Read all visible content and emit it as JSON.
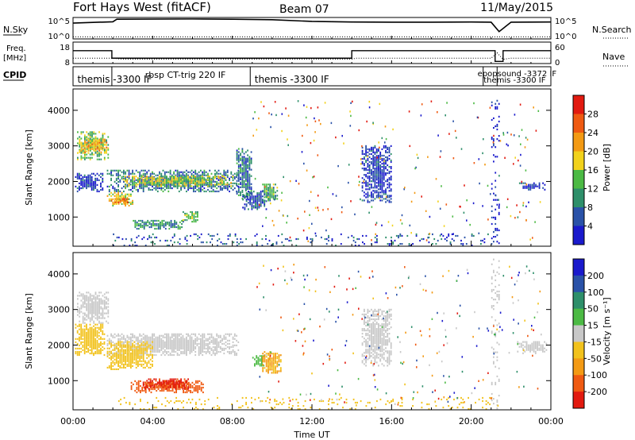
{
  "header": {
    "title": "Fort Hays West (fitACF)",
    "beam": "Beam 07",
    "date": "11/May/2015"
  },
  "xaxis": {
    "label": "Time UT",
    "ticks": [
      "00:00",
      "04:00",
      "08:00",
      "12:00",
      "16:00",
      "20:00",
      "00:00"
    ]
  },
  "nsky_panel": {
    "left_label": "N.Sky",
    "left_ticks": [
      "10^5",
      "10^0"
    ],
    "right_label": "N.Search",
    "right_ticks": [
      "10^5",
      "10^0"
    ]
  },
  "freq_panel": {
    "left_label_1": "Freq.",
    "left_label_2": "[MHz]",
    "left_ticks": [
      "18",
      "8"
    ],
    "right_label": "Nave",
    "right_ticks": [
      "60",
      "0"
    ]
  },
  "cpid": {
    "label": "CPID",
    "entries": [
      {
        "text": "themis -3300 IF",
        "t": 0.1
      },
      {
        "text": "rbsp CT-trig 220 IF",
        "t": 3.5
      },
      {
        "text": "themis -3300 IF",
        "t": 9.0
      },
      {
        "text": "epopsound -3372 IF",
        "t": 20.2
      },
      {
        "text": "themis -3300 IF",
        "t": 20.5
      }
    ]
  },
  "power_panel": {
    "ylabel": "Slant Range [km]",
    "yticks": [
      "1000",
      "2000",
      "3000",
      "4000"
    ],
    "colorbar_label": "Power [dB]",
    "colorbar_ticks": [
      "4",
      "8",
      "12",
      "16",
      "20",
      "24",
      "28"
    ],
    "colors": [
      "#1a1acc",
      "#2a52a8",
      "#2e8f6a",
      "#4cba44",
      "#f2d21c",
      "#f39a14",
      "#ef5a12",
      "#e21a10"
    ]
  },
  "velocity_panel": {
    "ylabel": "Slant Range [km]",
    "yticks": [
      "1000",
      "2000",
      "3000",
      "4000"
    ],
    "colorbar_label": "Velocity [m s⁻¹]",
    "colorbar_ticks": [
      "200",
      "100",
      "50",
      "15",
      "-15",
      "-50",
      "-100",
      "-200"
    ],
    "colors": [
      "#1a1acc",
      "#2a52a8",
      "#2e8f6a",
      "#4cba44",
      "#c8c8c8",
      "#f2c21c",
      "#f39a14",
      "#ef5a12",
      "#e21a10"
    ]
  },
  "chart_data": [
    {
      "type": "line",
      "panel": "nsky",
      "series": [
        {
          "name": "N.Sky",
          "x": [
            0,
            2,
            2.2,
            6,
            8,
            10,
            12,
            14,
            16,
            18,
            20,
            21,
            21.4,
            22,
            24
          ],
          "y": [
            5000,
            10000,
            40000,
            45000,
            40000,
            30000,
            12000,
            9000,
            8000,
            8000,
            9000,
            8000,
            50,
            8000,
            9000
          ]
        },
        {
          "name": "N.Search",
          "x": [
            0,
            24
          ],
          "y": [
            3,
            3
          ]
        }
      ]
    },
    {
      "type": "line",
      "panel": "frequency",
      "series": [
        {
          "name": "Freq",
          "x": [
            0,
            1.95,
            1.95,
            14.0,
            14.0,
            21.2,
            21.2,
            21.6,
            21.6,
            24
          ],
          "y": [
            14,
            14,
            10.5,
            10.5,
            14,
            14,
            9,
            9,
            14,
            14
          ]
        },
        {
          "name": "Nave",
          "x": [
            0,
            2,
            2.5,
            14,
            14.2,
            21,
            21.3,
            21.6,
            22,
            24
          ],
          "y": [
            15,
            15,
            12,
            12,
            15,
            15,
            30,
            12,
            15,
            15
          ]
        }
      ]
    },
    {
      "type": "heatmap",
      "panel": "power",
      "x_unit": "hours UT",
      "y_unit": "km",
      "xlim": [
        0,
        24
      ],
      "ylim": [
        180,
        4600
      ],
      "zlim": [
        0,
        30
      ],
      "z_label": "Power [dB]",
      "regions": [
        {
          "t0": 0.2,
          "t1": 1.8,
          "r0": 2600,
          "r1": 3400,
          "z": 14
        },
        {
          "t0": 0.3,
          "t1": 1.7,
          "r0": 2800,
          "r1": 3200,
          "z": 20
        },
        {
          "t0": 0.1,
          "t1": 1.5,
          "r0": 1700,
          "r1": 2200,
          "z": 4
        },
        {
          "t0": 1.7,
          "t1": 8.3,
          "r0": 1700,
          "r1": 2300,
          "z": 8
        },
        {
          "t0": 2.5,
          "t1": 8.0,
          "r0": 1850,
          "r1": 2150,
          "z": 16
        },
        {
          "t0": 1.7,
          "t1": 3.0,
          "r0": 1300,
          "r1": 1700,
          "z": 18
        },
        {
          "t0": 1.9,
          "t1": 2.8,
          "r0": 1350,
          "r1": 1500,
          "z": 24
        },
        {
          "t0": 3.0,
          "t1": 5.5,
          "r0": 650,
          "r1": 900,
          "z": 10
        },
        {
          "t0": 5.5,
          "t1": 6.3,
          "r0": 850,
          "r1": 1150,
          "z": 12
        },
        {
          "t0": 8.2,
          "t1": 9.0,
          "r0": 1500,
          "r1": 2900,
          "z": 8
        },
        {
          "t0": 8.5,
          "t1": 9.8,
          "r0": 1200,
          "r1": 1700,
          "z": 6
        },
        {
          "t0": 9.5,
          "t1": 10.3,
          "r0": 1400,
          "r1": 1900,
          "z": 12
        },
        {
          "t0": 14.5,
          "t1": 16.0,
          "r0": 1400,
          "r1": 3000,
          "z": 4
        },
        {
          "t0": 21.0,
          "t1": 21.4,
          "r0": 200,
          "r1": 4400,
          "z": 2
        },
        {
          "t0": 22.4,
          "t1": 23.7,
          "r0": 1750,
          "r1": 1950,
          "z": 4
        },
        {
          "t0": 2.0,
          "t1": 21.0,
          "r0": 180,
          "r1": 500,
          "z": 6
        }
      ]
    },
    {
      "type": "heatmap",
      "panel": "velocity",
      "x_unit": "hours UT",
      "y_unit": "km",
      "xlim": [
        0,
        24
      ],
      "ylim": [
        180,
        4600
      ],
      "zlim": [
        -250,
        250
      ],
      "z_label": "Velocity [m s⁻¹]",
      "regions": [
        {
          "t0": 0.2,
          "t1": 1.8,
          "r0": 2600,
          "r1": 3500,
          "z": 0
        },
        {
          "t0": 0.1,
          "t1": 1.6,
          "r0": 1700,
          "r1": 2600,
          "z": -20
        },
        {
          "t0": 1.7,
          "t1": 8.3,
          "r0": 1700,
          "r1": 2300,
          "z": 0
        },
        {
          "t0": 1.7,
          "t1": 4.0,
          "r0": 1300,
          "r1": 2100,
          "z": -30
        },
        {
          "t0": 2.9,
          "t1": 6.5,
          "r0": 650,
          "r1": 1000,
          "z": -150
        },
        {
          "t0": 3.5,
          "t1": 5.8,
          "r0": 750,
          "r1": 1050,
          "z": -220
        },
        {
          "t0": 9.0,
          "t1": 9.6,
          "r0": 1400,
          "r1": 1700,
          "z": 40
        },
        {
          "t0": 9.5,
          "t1": 10.4,
          "r0": 1200,
          "r1": 1800,
          "z": -60
        },
        {
          "t0": 14.5,
          "t1": 16.0,
          "r0": 1400,
          "r1": 3000,
          "z": 0
        },
        {
          "t0": 21.0,
          "t1": 21.4,
          "r0": 200,
          "r1": 4400,
          "z": 0
        },
        {
          "t0": 22.3,
          "t1": 23.8,
          "r0": 1750,
          "r1": 2100,
          "z": 0
        },
        {
          "t0": 2.0,
          "t1": 21.0,
          "r0": 180,
          "r1": 500,
          "z": -20
        }
      ]
    }
  ]
}
